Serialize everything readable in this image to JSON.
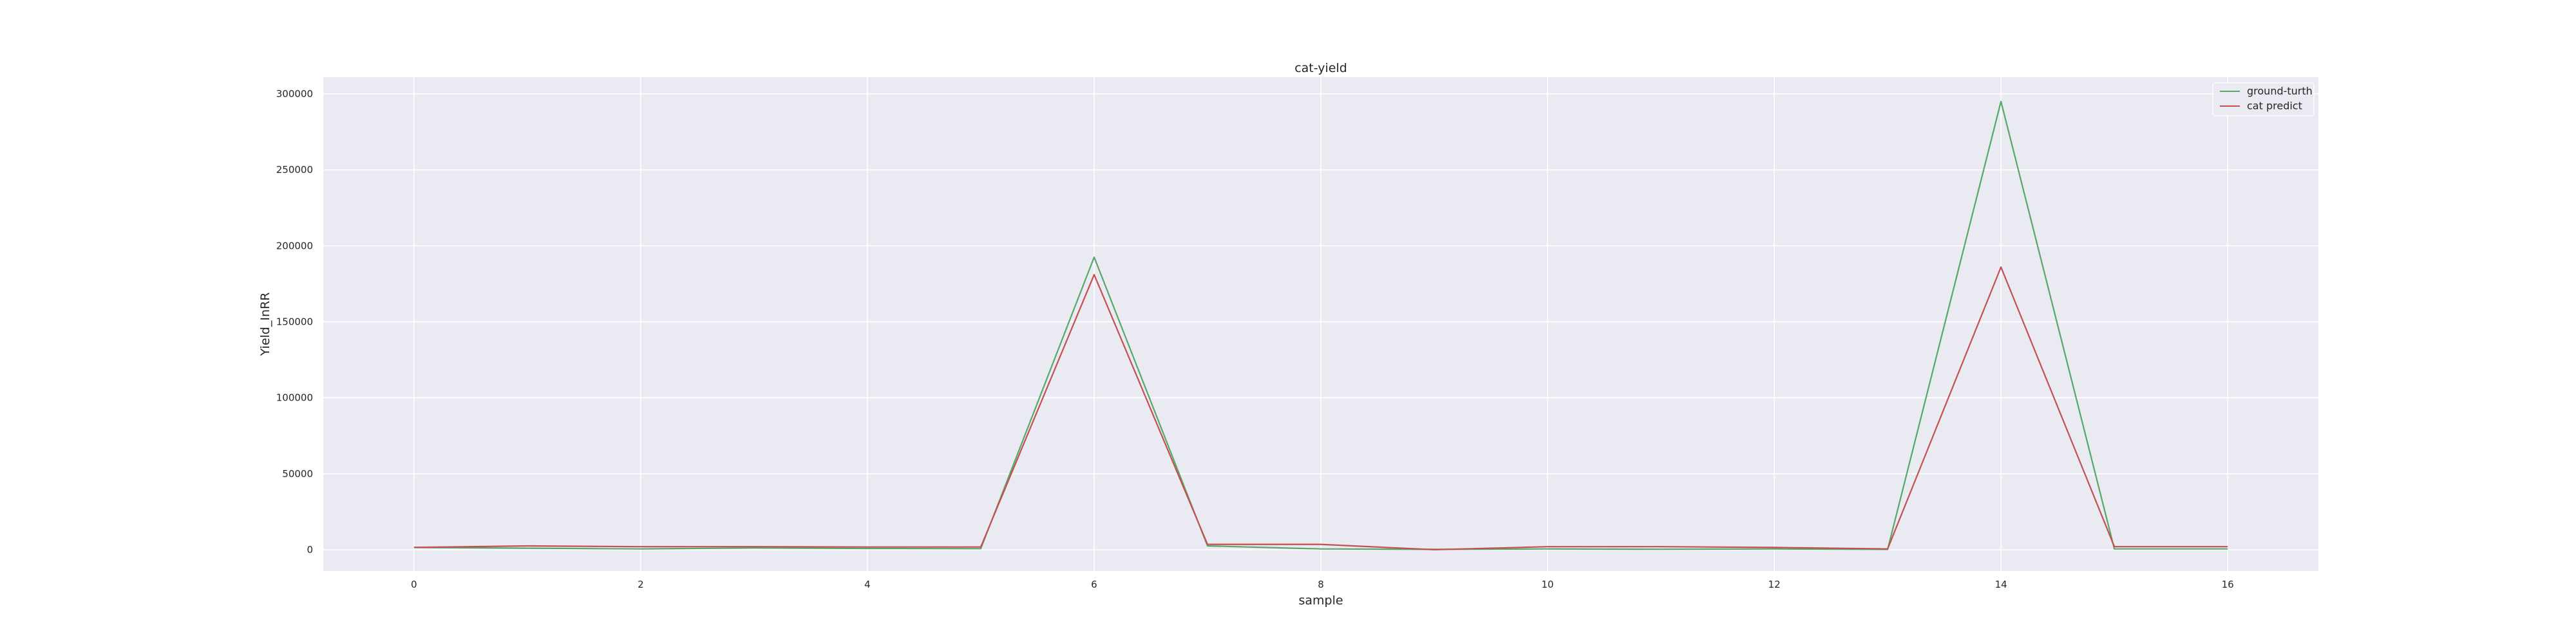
{
  "chart_data": {
    "type": "line",
    "title": "cat-yield",
    "xlabel": "sample",
    "ylabel": "Yield_InRR",
    "x": [
      0,
      1,
      2,
      3,
      4,
      5,
      6,
      7,
      8,
      9,
      10,
      11,
      12,
      13,
      14,
      15,
      16
    ],
    "xticks": [
      0,
      2,
      4,
      6,
      8,
      10,
      12,
      14,
      16
    ],
    "yticks": [
      0,
      50000,
      100000,
      150000,
      200000,
      250000,
      300000
    ],
    "xlim": [
      -0.8,
      16.8
    ],
    "ylim": [
      -14000,
      311000
    ],
    "grid": true,
    "legend_position": "top-right",
    "colors": {
      "background": "#eaeaf2",
      "grid": "#ffffff"
    },
    "series": [
      {
        "name": "ground-turth",
        "color": "#55a868",
        "values": [
          1500,
          1000,
          500,
          1200,
          800,
          700,
          192500,
          2500,
          500,
          200,
          500,
          300,
          500,
          200,
          295000,
          500,
          500
        ]
      },
      {
        "name": "cat predict",
        "color": "#c44e52",
        "values": [
          1500,
          2500,
          2000,
          2000,
          1800,
          1800,
          181000,
          3500,
          3500,
          0,
          2000,
          2000,
          1500,
          500,
          186000,
          2000,
          2000
        ]
      }
    ]
  }
}
